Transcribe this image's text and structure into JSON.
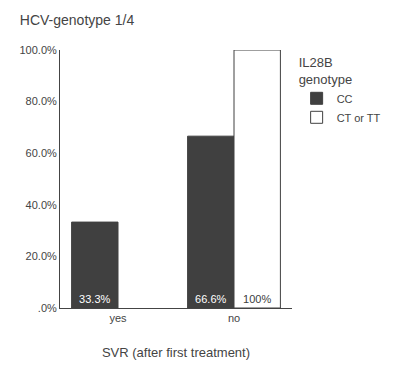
{
  "chart_data": {
    "type": "bar",
    "title": "HCV-genotype 1/4",
    "xlabel": "SVR (after first treatment)",
    "categories": [
      "yes",
      "no"
    ],
    "series": [
      {
        "name": "CC",
        "color": "#404040",
        "values": [
          33.3,
          66.6
        ],
        "value_labels": [
          "33.3%",
          "66.6%"
        ]
      },
      {
        "name": "CT or TT",
        "color": "white",
        "values": [
          null,
          100.0
        ],
        "value_labels": [
          null,
          "100%"
        ]
      }
    ],
    "data_labels": true,
    "ylim": [
      0,
      100
    ],
    "yticks": [
      {
        "value": 0,
        "label": ".0%"
      },
      {
        "value": 20,
        "label": "20.0%"
      },
      {
        "value": 40,
        "label": "40.0%"
      },
      {
        "value": 60,
        "label": "60.0%"
      },
      {
        "value": 80,
        "label": "80.0%"
      },
      {
        "value": 100,
        "label": "100.0%"
      }
    ],
    "grid": false,
    "legend": "right",
    "legend_title": "IL28B\ngenotype"
  }
}
